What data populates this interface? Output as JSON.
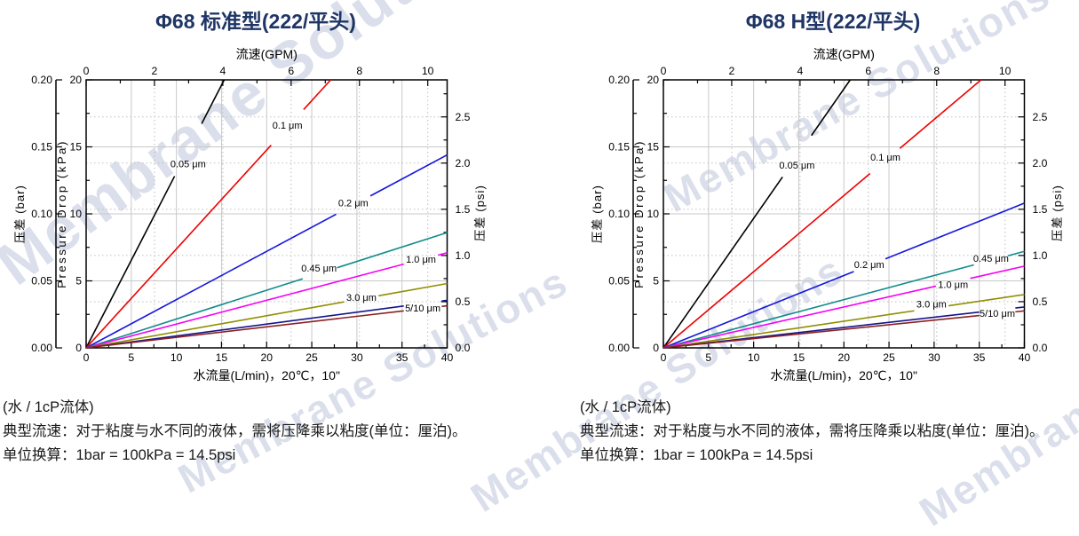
{
  "page": {
    "watermark": "Membrane Solutions",
    "footnote": {
      "line1": "(水 / 1cP流体)",
      "line2": "典型流速：对于粘度与水不同的液体，需将压降乘以粘度(单位：厘泊)。",
      "line3": "单位换算：1bar = 100kPa = 14.5psi"
    }
  },
  "chart_data": [
    {
      "type": "line",
      "title": "Φ68 标准型(222/平头)",
      "x_bottom": {
        "label": "水流量(L/min)，20℃，10\"",
        "range": [
          0,
          40
        ],
        "ticks": [
          0,
          5,
          10,
          15,
          20,
          25,
          30,
          35,
          40
        ],
        "minor": [
          2.5,
          7.5,
          12.5,
          17.5,
          22.5,
          27.5,
          32.5,
          37.5
        ]
      },
      "x_top": {
        "label": "流速(GPM)",
        "lmin_per_gpm": 3.78541,
        "ticks": [
          0,
          2,
          4,
          6,
          8,
          10
        ],
        "minor": [
          1,
          3,
          5,
          7,
          9
        ]
      },
      "y_left": {
        "label": "Pressure Drop (kPa)",
        "range": [
          0,
          20
        ],
        "ticks": [
          0,
          5,
          10,
          15,
          20
        ],
        "minor": [
          2.5,
          7.5,
          12.5,
          17.5
        ]
      },
      "y_outer_left": {
        "label": "压差 (bar)",
        "range": [
          0,
          0.2
        ],
        "ticks": [
          "0.00",
          "0.05",
          "0.10",
          "0.15",
          "0.20"
        ],
        "minor": [
          0.025,
          0.075,
          0.125,
          0.175
        ]
      },
      "y_right": {
        "label": "压差 (psi)",
        "kpa_per_psi": 6.89476,
        "ticks": [
          "0.0",
          "0.5",
          "1.0",
          "1.5",
          "2.0",
          "2.5"
        ],
        "minor": [
          0.25,
          0.75,
          1.25,
          1.75,
          2.25,
          2.75
        ]
      },
      "grid": {
        "v_solid_lmin": [
          5,
          10,
          15,
          20,
          25,
          30,
          35
        ],
        "v_dotted_gpm": [
          2,
          4,
          6,
          8,
          10
        ],
        "h_solid_kpa": [
          5,
          10,
          15
        ],
        "h_dotted_psi": [
          0.5,
          1.0,
          1.5,
          2.0,
          2.5
        ]
      },
      "series": [
        {
          "name": "0.05 μm",
          "color": "#000000",
          "points": [
            [
              0,
              0
            ],
            [
              15.3,
              20
            ]
          ],
          "gap_x": [
            9.8,
            12.8
          ],
          "label": {
            "text": "0.05 μm",
            "x": 11.3,
            "y": 13.7
          }
        },
        {
          "name": "0.1 μm",
          "color": "#ee0000",
          "points": [
            [
              0,
              0
            ],
            [
              27.1,
              20
            ]
          ],
          "gap_x": [
            20.5,
            24.1
          ],
          "label": {
            "text": "0.1 μm",
            "x": 22.3,
            "y": 16.6
          }
        },
        {
          "name": "0.2 μm",
          "color": "#1515dd",
          "points": [
            [
              0,
              0
            ],
            [
              40,
              14.4
            ]
          ],
          "gap_x": [
            27.7,
            31.5
          ],
          "label": {
            "text": "0.2 μm",
            "x": 29.6,
            "y": 10.8
          }
        },
        {
          "name": "0.45 μm",
          "color": "#0f8b8b",
          "points": [
            [
              0,
              0
            ],
            [
              40,
              8.6
            ]
          ],
          "gap_x": [
            24.0,
            27.8
          ],
          "label": {
            "text": "0.45 μm",
            "x": 25.8,
            "y": 5.95
          }
        },
        {
          "name": "1.0 μm",
          "color": "#f500f5",
          "points": [
            [
              0,
              0
            ],
            [
              40,
              7.1
            ]
          ],
          "gap_x": [
            35.2,
            39.0
          ],
          "label": {
            "text": "1.0 μm",
            "x": 37.1,
            "y": 6.6
          }
        },
        {
          "name": "3.0 μm",
          "color": "#8f8f00",
          "points": [
            [
              0,
              0
            ],
            [
              40,
              4.8
            ]
          ],
          "gap_x": [
            28.6,
            32.4
          ],
          "label": {
            "text": "3.0 μm",
            "x": 30.5,
            "y": 3.75
          }
        },
        {
          "name": "5 μm",
          "color": "#14148c",
          "points": [
            [
              0,
              0
            ],
            [
              40,
              3.55
            ]
          ],
          "gap_x": [
            35.2,
            39.4
          ],
          "label": null
        },
        {
          "name": "10 μm",
          "color": "#8c2020",
          "points": [
            [
              0,
              0
            ],
            [
              40,
              3.14
            ]
          ],
          "gap_x": [
            35.2,
            39.4
          ],
          "label": {
            "text": "5/10 μm",
            "x": 37.3,
            "y": 2.95
          }
        }
      ]
    },
    {
      "type": "line",
      "title": "Φ68 H型(222/平头)",
      "x_bottom": {
        "label": "水流量(L/min)，20℃，10\"",
        "range": [
          0,
          40
        ],
        "ticks": [
          0,
          5,
          10,
          15,
          20,
          25,
          30,
          35,
          40
        ],
        "minor": [
          2.5,
          7.5,
          12.5,
          17.5,
          22.5,
          27.5,
          32.5,
          37.5
        ]
      },
      "x_top": {
        "label": "流速(GPM)",
        "lmin_per_gpm": 3.78541,
        "ticks": [
          0,
          2,
          4,
          6,
          8,
          10
        ],
        "minor": [
          1,
          3,
          5,
          7,
          9
        ]
      },
      "y_left": {
        "label": "Pressure Drop (kPa)",
        "range": [
          0,
          20
        ],
        "ticks": [
          0,
          5,
          10,
          15,
          20
        ],
        "minor": [
          2.5,
          7.5,
          12.5,
          17.5
        ]
      },
      "y_outer_left": {
        "label": "压差 (bar)",
        "range": [
          0,
          0.2
        ],
        "ticks": [
          "0.00",
          "0.05",
          "0.10",
          "0.15",
          "0.20"
        ],
        "minor": [
          0.025,
          0.075,
          0.125,
          0.175
        ]
      },
      "y_right": {
        "label": "压差 (psi)",
        "kpa_per_psi": 6.89476,
        "ticks": [
          "0.0",
          "0.5",
          "1.0",
          "1.5",
          "2.0",
          "2.5"
        ],
        "minor": [
          0.25,
          0.75,
          1.25,
          1.75,
          2.25,
          2.75
        ]
      },
      "grid": {
        "v_solid_lmin": [
          5,
          10,
          15,
          20,
          25,
          30,
          35
        ],
        "v_dotted_gpm": [
          2,
          4,
          6,
          8,
          10
        ],
        "h_solid_kpa": [
          5,
          10,
          15
        ],
        "h_dotted_psi": [
          0.5,
          1.0,
          1.5,
          2.0,
          2.5
        ]
      },
      "series": [
        {
          "name": "0.05 μm",
          "color": "#000000",
          "points": [
            [
              0,
              0
            ],
            [
              20.7,
              20
            ]
          ],
          "gap_x": [
            13.2,
            16.4
          ],
          "label": {
            "text": "0.05 μm",
            "x": 14.8,
            "y": 13.6
          }
        },
        {
          "name": "0.1 μm",
          "color": "#ee0000",
          "points": [
            [
              0,
              0
            ],
            [
              35.2,
              20
            ]
          ],
          "gap_x": [
            22.9,
            26.2
          ],
          "label": {
            "text": "0.1 μm",
            "x": 24.6,
            "y": 14.2
          }
        },
        {
          "name": "0.2 μm",
          "color": "#1515dd",
          "points": [
            [
              0,
              0
            ],
            [
              40,
              10.8
            ]
          ],
          "gap_x": [
            21.1,
            24.6
          ],
          "label": {
            "text": "0.2 μm",
            "x": 22.8,
            "y": 6.2
          }
        },
        {
          "name": "0.45 μm",
          "color": "#0f8b8b",
          "points": [
            [
              0,
              0
            ],
            [
              40,
              7.2
            ]
          ],
          "gap_x": [
            34.4,
            38.2
          ],
          "label": {
            "text": "0.45 μm",
            "x": 36.3,
            "y": 6.65
          }
        },
        {
          "name": "1.0 μm",
          "color": "#f500f5",
          "points": [
            [
              0,
              0
            ],
            [
              40,
              6.1
            ]
          ],
          "gap_x": [
            30.2,
            34.0
          ],
          "label": {
            "text": "1.0 μm",
            "x": 32.1,
            "y": 4.7
          }
        },
        {
          "name": "3.0 μm",
          "color": "#8f8f00",
          "points": [
            [
              0,
              0
            ],
            [
              40,
              3.98
            ]
          ],
          "gap_x": [
            27.8,
            31.6
          ],
          "label": {
            "text": "3.0 μm",
            "x": 29.7,
            "y": 3.25
          }
        },
        {
          "name": "5 μm",
          "color": "#14148c",
          "points": [
            [
              0,
              0
            ],
            [
              40,
              3.05
            ]
          ],
          "gap_x": [
            35.0,
            39.0
          ],
          "label": null
        },
        {
          "name": "10 μm",
          "color": "#8c2020",
          "points": [
            [
              0,
              0
            ],
            [
              40,
              2.76
            ]
          ],
          "gap_x": [
            35.0,
            39.0
          ],
          "label": {
            "text": "5/10 μm",
            "x": 37.0,
            "y": 2.55
          }
        }
      ]
    }
  ]
}
